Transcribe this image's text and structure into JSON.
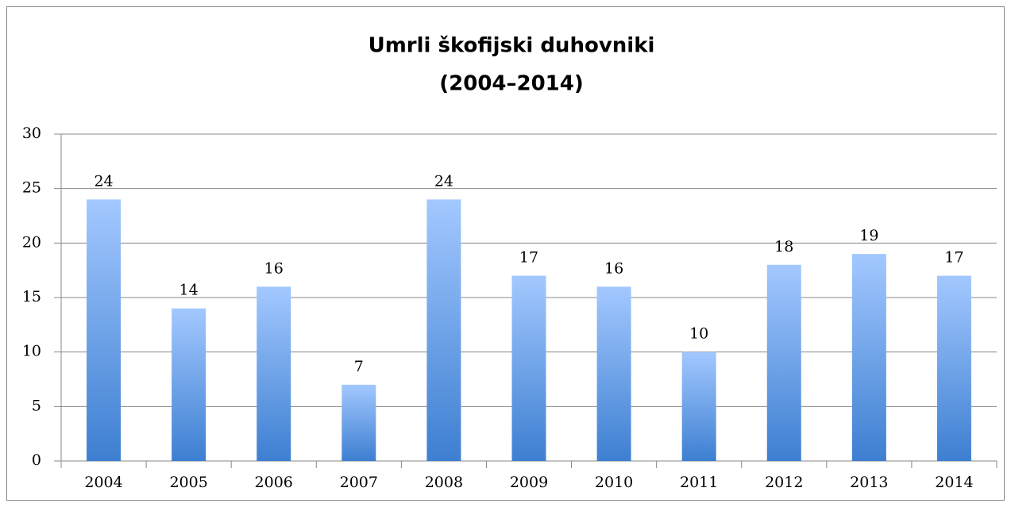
{
  "chart_data": {
    "type": "bar",
    "title": "Umrli škofijski duhovniki",
    "subtitle": "(2004–2014)",
    "categories": [
      "2004",
      "2005",
      "2006",
      "2007",
      "2008",
      "2009",
      "2010",
      "2011",
      "2012",
      "2013",
      "2014"
    ],
    "values": [
      24,
      14,
      16,
      7,
      24,
      17,
      16,
      10,
      18,
      19,
      17
    ],
    "color": "#4a86d4",
    "ylim": [
      0,
      30
    ],
    "yticks": [
      0,
      5,
      10,
      15,
      20,
      25,
      30
    ],
    "grid": true
  }
}
